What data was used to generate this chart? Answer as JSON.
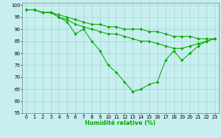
{
  "series": [
    {
      "x": [
        0,
        1,
        2,
        3,
        4,
        5,
        6,
        7,
        8,
        9,
        10,
        11,
        12,
        13,
        14,
        15,
        16,
        17,
        18,
        19,
        20,
        21,
        22,
        23
      ],
      "y": [
        98,
        98,
        97,
        97,
        96,
        95,
        94,
        93,
        92,
        92,
        91,
        91,
        90,
        90,
        90,
        89,
        89,
        88,
        87,
        87,
        87,
        86,
        86,
        86
      ]
    },
    {
      "x": [
        0,
        1,
        2,
        3,
        4,
        5,
        6,
        7,
        8,
        9,
        10,
        11,
        12,
        13,
        14,
        15,
        16,
        17,
        18,
        19,
        20,
        21,
        22,
        23
      ],
      "y": [
        98,
        98,
        97,
        97,
        95,
        94,
        92,
        91,
        90,
        89,
        88,
        88,
        87,
        86,
        85,
        85,
        84,
        83,
        82,
        82,
        83,
        84,
        85,
        86
      ]
    },
    {
      "x": [
        0,
        1,
        2,
        3,
        4,
        5,
        6,
        7,
        8,
        9,
        10,
        11,
        12,
        13,
        14,
        15,
        16,
        17,
        18,
        19,
        20,
        21,
        22,
        23
      ],
      "y": [
        98,
        98,
        97,
        97,
        95,
        93,
        88,
        90,
        85,
        81,
        75,
        72,
        68,
        64,
        65,
        67,
        68,
        77,
        81,
        77,
        80,
        83,
        85,
        86
      ]
    }
  ],
  "line_color": "#00aa00",
  "marker": "D",
  "markersize": 2.0,
  "linewidth": 0.8,
  "xlabel": "Humidité relative (%)",
  "ylim": [
    55,
    101
  ],
  "xlim": [
    -0.5,
    23.5
  ],
  "yticks": [
    55,
    60,
    65,
    70,
    75,
    80,
    85,
    90,
    95,
    100
  ],
  "xticks": [
    0,
    1,
    2,
    3,
    4,
    5,
    6,
    7,
    8,
    9,
    10,
    11,
    12,
    13,
    14,
    15,
    16,
    17,
    18,
    19,
    20,
    21,
    22,
    23
  ],
  "background_color": "#c8efef",
  "grid_color": "#99cccc",
  "xlabel_fontsize": 6.0,
  "tick_fontsize": 5.0
}
